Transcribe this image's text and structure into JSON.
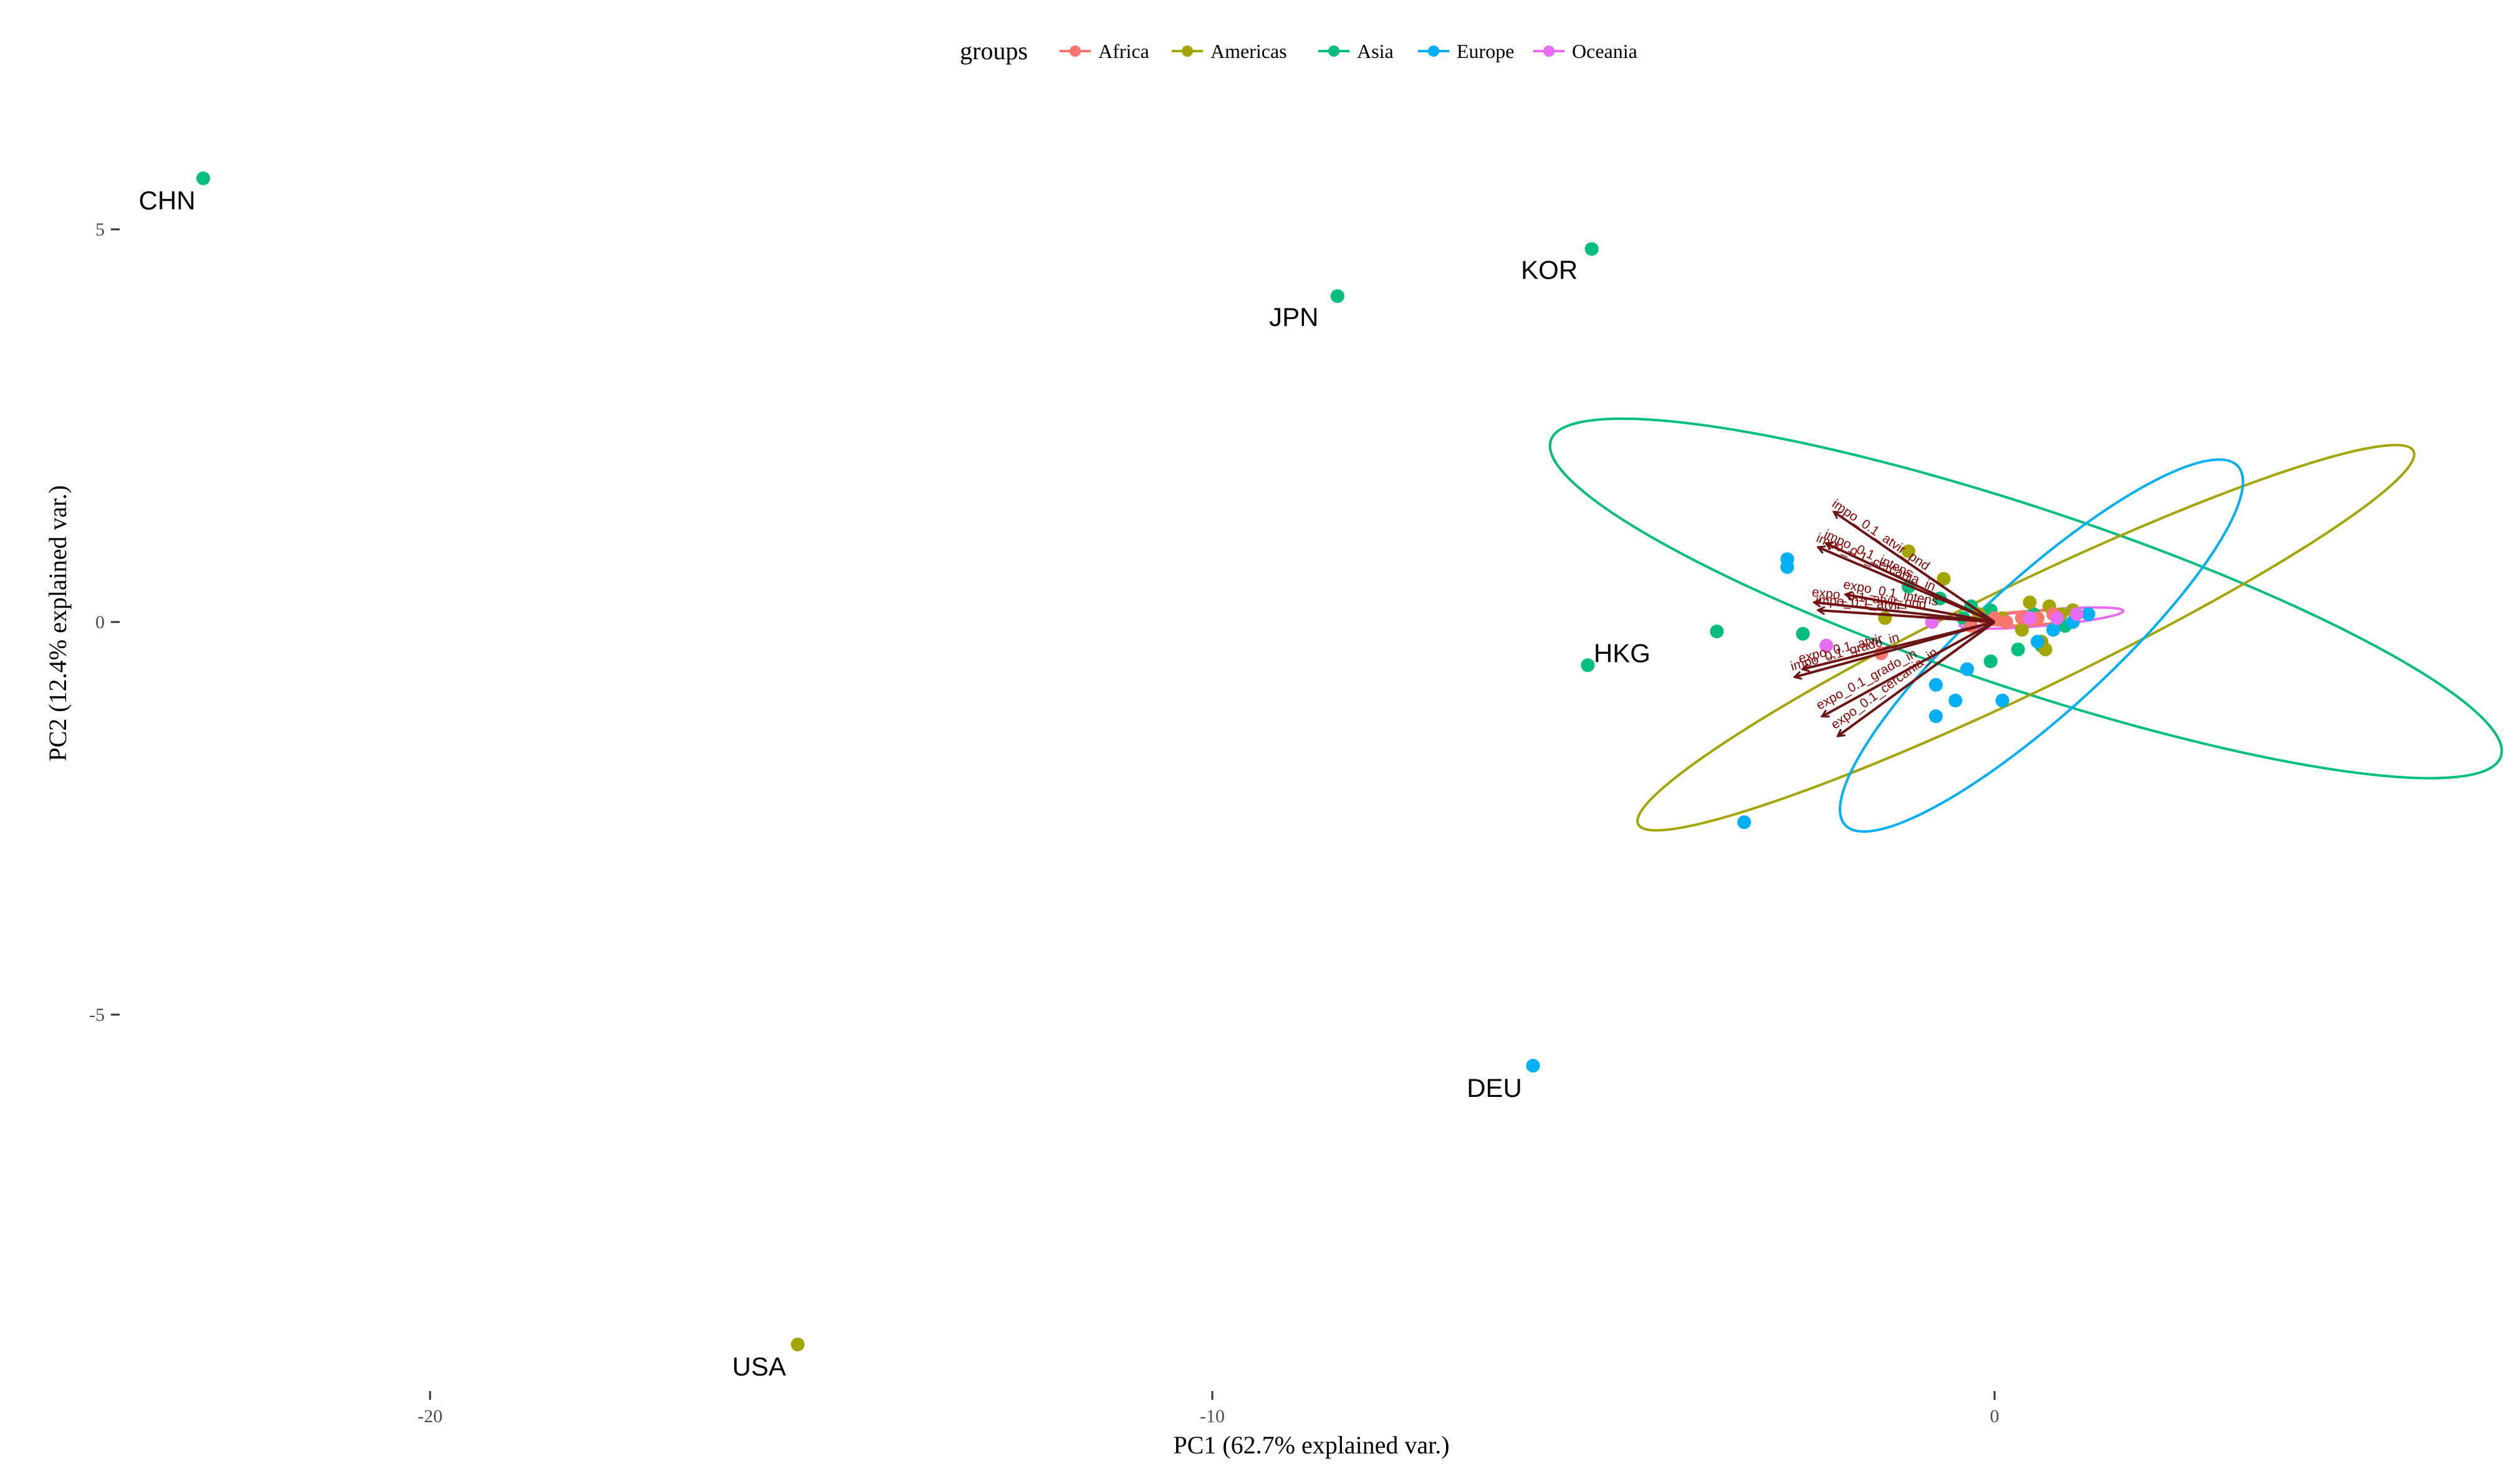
{
  "chart_data": {
    "type": "scatter",
    "subtype": "pca-biplot",
    "xlabel": "PC1 (62.7% explained var.)",
    "ylabel": "PC2 (12.4% explained var.)",
    "xlim": [
      -24.5,
      5.5
    ],
    "ylim": [
      -9.7,
      6.8
    ],
    "x_ticks": [
      -20,
      -10,
      0
    ],
    "x_tick_labels": [
      "-20",
      "-10",
      "0"
    ],
    "y_ticks": [
      5,
      0,
      -5
    ],
    "y_tick_labels": [
      "5",
      "0",
      "-5"
    ],
    "grid": false,
    "legend": {
      "title": "groups",
      "position": "top",
      "entries": [
        {
          "label": "Africa",
          "color": "#F8766D"
        },
        {
          "label": "Americas",
          "color": "#A3A500"
        },
        {
          "label": "Asia",
          "color": "#00BF7D"
        },
        {
          "label": "Europe",
          "color": "#00B0F6"
        },
        {
          "label": "Oceania",
          "color": "#E76BF3"
        }
      ]
    },
    "labeled_points": [
      {
        "label": "CHN",
        "group": "Asia",
        "x": -22.9,
        "y": 5.65
      },
      {
        "label": "JPN",
        "group": "Asia",
        "x": -8.4,
        "y": 4.15
      },
      {
        "label": "KOR",
        "group": "Asia",
        "x": -5.15,
        "y": 4.75
      },
      {
        "label": "HKG",
        "group": "Asia",
        "x": -5.2,
        "y": -0.55
      },
      {
        "label": "DEU",
        "group": "Europe",
        "x": -5.9,
        "y": -5.65
      },
      {
        "label": "USA",
        "group": "Americas",
        "x": -15.3,
        "y": -9.2
      }
    ],
    "points": [
      {
        "group": "Asia",
        "x": -3.55,
        "y": -0.12
      },
      {
        "group": "Asia",
        "x": -2.45,
        "y": -0.15
      },
      {
        "group": "Asia",
        "x": -1.1,
        "y": 0.45
      },
      {
        "group": "Asia",
        "x": -0.7,
        "y": 0.3
      },
      {
        "group": "Asia",
        "x": -0.3,
        "y": 0.2
      },
      {
        "group": "Asia",
        "x": -0.05,
        "y": 0.15
      },
      {
        "group": "Asia",
        "x": 0.3,
        "y": -0.35
      },
      {
        "group": "Asia",
        "x": -0.05,
        "y": -0.5
      },
      {
        "group": "Asia",
        "x": 0.6,
        "y": -0.3
      },
      {
        "group": "Asia",
        "x": 0.5,
        "y": 0.1
      },
      {
        "group": "Asia",
        "x": 0.9,
        "y": -0.05
      },
      {
        "group": "Asia",
        "x": -0.4,
        "y": 0.05
      },
      {
        "group": "Americas",
        "x": -1.1,
        "y": 0.9
      },
      {
        "group": "Americas",
        "x": -0.65,
        "y": 0.55
      },
      {
        "group": "Americas",
        "x": -1.4,
        "y": 0.05
      },
      {
        "group": "Americas",
        "x": -0.2,
        "y": 0.1
      },
      {
        "group": "Americas",
        "x": 0.1,
        "y": 0.05
      },
      {
        "group": "Americas",
        "x": 0.45,
        "y": 0.25
      },
      {
        "group": "Americas",
        "x": 0.7,
        "y": 0.2
      },
      {
        "group": "Americas",
        "x": 0.35,
        "y": -0.1
      },
      {
        "group": "Americas",
        "x": 0.6,
        "y": -0.25
      },
      {
        "group": "Americas",
        "x": 0.65,
        "y": -0.35
      },
      {
        "group": "Americas",
        "x": 0.85,
        "y": 0.1
      },
      {
        "group": "Americas",
        "x": 1.0,
        "y": 0.15
      },
      {
        "group": "Europe",
        "x": -2.65,
        "y": 0.8
      },
      {
        "group": "Europe",
        "x": -2.65,
        "y": 0.7
      },
      {
        "group": "Europe",
        "x": -3.2,
        "y": -2.55
      },
      {
        "group": "Europe",
        "x": -0.35,
        "y": -0.6
      },
      {
        "group": "Europe",
        "x": -0.5,
        "y": -1.0
      },
      {
        "group": "Europe",
        "x": -0.75,
        "y": -0.8
      },
      {
        "group": "Europe",
        "x": -0.75,
        "y": -1.2
      },
      {
        "group": "Europe",
        "x": 0.1,
        "y": -1.0
      },
      {
        "group": "Europe",
        "x": 0.55,
        "y": -0.25
      },
      {
        "group": "Europe",
        "x": 0.75,
        "y": -0.1
      },
      {
        "group": "Europe",
        "x": 1.0,
        "y": 0.0
      },
      {
        "group": "Europe",
        "x": 1.2,
        "y": 0.1
      },
      {
        "group": "Africa",
        "x": -1.45,
        "y": -0.4
      },
      {
        "group": "Africa",
        "x": -0.3,
        "y": -0.05
      },
      {
        "group": "Africa",
        "x": 0.0,
        "y": 0.05
      },
      {
        "group": "Africa",
        "x": 0.15,
        "y": 0.0
      },
      {
        "group": "Africa",
        "x": 0.35,
        "y": 0.05
      },
      {
        "group": "Africa",
        "x": 0.55,
        "y": 0.05
      },
      {
        "group": "Africa",
        "x": 0.75,
        "y": 0.1
      },
      {
        "group": "Oceania",
        "x": -2.15,
        "y": -0.3
      },
      {
        "group": "Oceania",
        "x": -0.8,
        "y": 0.0
      },
      {
        "group": "Oceania",
        "x": 0.45,
        "y": 0.05
      },
      {
        "group": "Oceania",
        "x": 0.8,
        "y": 0.05
      },
      {
        "group": "Oceania",
        "x": 1.05,
        "y": 0.1
      }
    ],
    "ellipses": [
      {
        "group": "Asia",
        "cx": 0.4,
        "cy": 0.3,
        "rx": 6.4,
        "ry": 1.15,
        "angle_deg": 18.4
      },
      {
        "group": "Americas",
        "cx": 0.4,
        "cy": -0.2,
        "rx": 5.5,
        "ry": 0.68,
        "angle_deg": -25.7
      },
      {
        "group": "Europe",
        "cx": 0.6,
        "cy": -0.3,
        "rx": 3.4,
        "ry": 0.85,
        "angle_deg": -42.4
      },
      {
        "group": "Oceania",
        "cx": 0.6,
        "cy": 0.05,
        "rx": 1.05,
        "ry": 0.1,
        "angle_deg": -5
      },
      {
        "group": "Africa",
        "cx": 0.45,
        "cy": 0.05,
        "rx": 0.65,
        "ry": 0.09,
        "angle_deg": -3
      }
    ],
    "arrows": [
      {
        "label": "impo_0.1_atvir_pnd",
        "x": -2.05,
        "y": 1.4
      },
      {
        "label": "impo_0.1_intens",
        "x": -2.15,
        "y": 1.0
      },
      {
        "label": "impo_0.1_cercania_in",
        "x": -2.25,
        "y": 0.95
      },
      {
        "label": "expo_0.1_intens",
        "x": -1.9,
        "y": 0.35
      },
      {
        "label": "expo_0.1_atvir_pnd",
        "x": -2.3,
        "y": 0.25
      },
      {
        "label": "impo_0.1_atvir",
        "x": -2.25,
        "y": 0.15
      },
      {
        "label": "expo_0.1_atvir",
        "x": -2.45,
        "y": -0.6
      },
      {
        "label": "impo_0.1_grado_in",
        "x": -2.55,
        "y": -0.7
      },
      {
        "label": "expo_0.1_grado_in",
        "x": -2.2,
        "y": -1.2
      },
      {
        "label": "expo_0.1_cercania_in",
        "x": -2.0,
        "y": -1.45
      }
    ]
  }
}
